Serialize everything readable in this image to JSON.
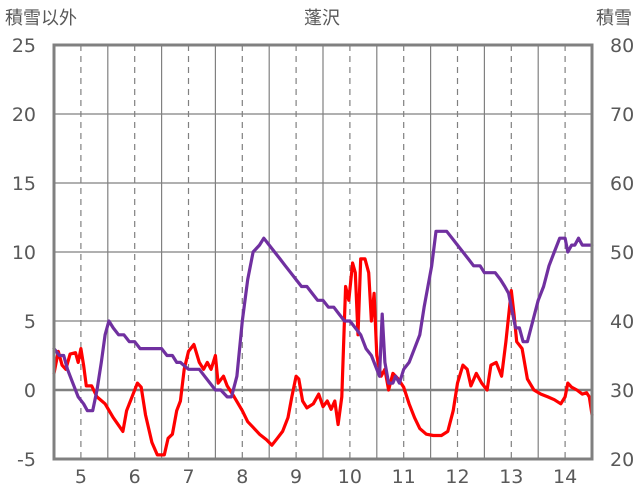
{
  "chart_data": {
    "type": "line",
    "title": "蓬沢",
    "left_axis_label": "積雪以外",
    "right_axis_label": "積雪",
    "x_ticks": [
      "5",
      "6",
      "7",
      "8",
      "9",
      "10",
      "11",
      "12",
      "13",
      "14"
    ],
    "xlim": [
      4.5,
      14.5
    ],
    "ylim_left": [
      -5,
      25
    ],
    "ylim_right": [
      20,
      80
    ],
    "left_ticks": [
      "-5",
      "0",
      "5",
      "10",
      "15",
      "20",
      "25"
    ],
    "right_ticks": [
      "20",
      "30",
      "40",
      "50",
      "60",
      "70",
      "80"
    ],
    "grid": {
      "vertical": "dashed",
      "horizontal": "solid"
    },
    "series": [
      {
        "axis": "left",
        "color": "#ff0000",
        "points": [
          [
            4.5,
            1.2
          ],
          [
            4.58,
            2.8
          ],
          [
            4.65,
            1.8
          ],
          [
            4.72,
            1.5
          ],
          [
            4.8,
            2.6
          ],
          [
            4.9,
            2.7
          ],
          [
            4.95,
            2.0
          ],
          [
            5.0,
            3.0
          ],
          [
            5.05,
            1.8
          ],
          [
            5.1,
            0.3
          ],
          [
            5.2,
            0.3
          ],
          [
            5.3,
            -0.5
          ],
          [
            5.45,
            -1.0
          ],
          [
            5.6,
            -2.0
          ],
          [
            5.78,
            -3.0
          ],
          [
            5.85,
            -1.5
          ],
          [
            5.95,
            -0.5
          ],
          [
            6.05,
            0.5
          ],
          [
            6.12,
            0.2
          ],
          [
            6.2,
            -1.8
          ],
          [
            6.32,
            -3.8
          ],
          [
            6.42,
            -4.7
          ],
          [
            6.55,
            -4.7
          ],
          [
            6.62,
            -3.5
          ],
          [
            6.7,
            -3.2
          ],
          [
            6.78,
            -1.5
          ],
          [
            6.85,
            -0.8
          ],
          [
            6.92,
            1.5
          ],
          [
            7.0,
            2.8
          ],
          [
            7.1,
            3.3
          ],
          [
            7.2,
            2.0
          ],
          [
            7.28,
            1.5
          ],
          [
            7.35,
            2.0
          ],
          [
            7.42,
            1.5
          ],
          [
            7.5,
            2.5
          ],
          [
            7.55,
            0.5
          ],
          [
            7.65,
            1.0
          ],
          [
            7.72,
            0.3
          ],
          [
            7.85,
            -0.5
          ],
          [
            8.0,
            -1.5
          ],
          [
            8.1,
            -2.3
          ],
          [
            8.2,
            -2.7
          ],
          [
            8.32,
            -3.2
          ],
          [
            8.45,
            -3.6
          ],
          [
            8.55,
            -4.0
          ],
          [
            8.65,
            -3.5
          ],
          [
            8.75,
            -3.0
          ],
          [
            8.85,
            -2.0
          ],
          [
            8.92,
            -0.5
          ],
          [
            9.0,
            1.0
          ],
          [
            9.05,
            0.8
          ],
          [
            9.12,
            -0.8
          ],
          [
            9.2,
            -1.3
          ],
          [
            9.32,
            -1.0
          ],
          [
            9.42,
            -0.3
          ],
          [
            9.5,
            -1.2
          ],
          [
            9.58,
            -0.8
          ],
          [
            9.65,
            -1.4
          ],
          [
            9.72,
            -0.8
          ],
          [
            9.78,
            -2.5
          ],
          [
            9.85,
            -0.5
          ],
          [
            9.92,
            7.5
          ],
          [
            9.98,
            6.5
          ],
          [
            10.05,
            9.2
          ],
          [
            10.1,
            8.5
          ],
          [
            10.15,
            4.0
          ],
          [
            10.2,
            9.5
          ],
          [
            10.28,
            9.5
          ],
          [
            10.35,
            8.5
          ],
          [
            10.4,
            5.0
          ],
          [
            10.45,
            7.0
          ],
          [
            10.5,
            2.5
          ],
          [
            10.58,
            1.0
          ],
          [
            10.65,
            1.5
          ],
          [
            10.72,
            0.0
          ],
          [
            10.8,
            1.2
          ],
          [
            10.9,
            0.8
          ],
          [
            11.0,
            0.2
          ],
          [
            11.1,
            -1.0
          ],
          [
            11.2,
            -2.0
          ],
          [
            11.3,
            -2.8
          ],
          [
            11.42,
            -3.2
          ],
          [
            11.55,
            -3.3
          ],
          [
            11.7,
            -3.3
          ],
          [
            11.82,
            -3.0
          ],
          [
            11.92,
            -1.5
          ],
          [
            12.0,
            0.5
          ],
          [
            12.1,
            1.8
          ],
          [
            12.18,
            1.5
          ],
          [
            12.25,
            0.3
          ],
          [
            12.35,
            1.2
          ],
          [
            12.45,
            0.5
          ],
          [
            12.55,
            0.0
          ],
          [
            12.62,
            1.8
          ],
          [
            12.72,
            2.0
          ],
          [
            12.82,
            1.0
          ],
          [
            12.9,
            3.5
          ],
          [
            13.0,
            7.2
          ],
          [
            13.05,
            5.5
          ],
          [
            13.1,
            3.5
          ],
          [
            13.2,
            3.0
          ],
          [
            13.3,
            0.8
          ],
          [
            13.42,
            0.0
          ],
          [
            13.55,
            -0.3
          ],
          [
            13.68,
            -0.5
          ],
          [
            13.8,
            -0.7
          ],
          [
            13.92,
            -1.0
          ],
          [
            14.0,
            -0.5
          ],
          [
            14.05,
            0.5
          ],
          [
            14.12,
            0.2
          ],
          [
            14.22,
            0.0
          ],
          [
            14.32,
            -0.3
          ],
          [
            14.4,
            -0.2
          ],
          [
            14.45,
            -0.5
          ],
          [
            14.5,
            -1.8
          ]
        ]
      },
      {
        "axis": "right",
        "color": "#7030a0",
        "points": [
          [
            4.5,
            36
          ],
          [
            4.6,
            35
          ],
          [
            4.68,
            35
          ],
          [
            4.75,
            33
          ],
          [
            4.85,
            31
          ],
          [
            4.95,
            29
          ],
          [
            5.05,
            28
          ],
          [
            5.12,
            27
          ],
          [
            5.22,
            27
          ],
          [
            5.3,
            30
          ],
          [
            5.38,
            34
          ],
          [
            5.45,
            38
          ],
          [
            5.52,
            40
          ],
          [
            5.6,
            39
          ],
          [
            5.7,
            38
          ],
          [
            5.8,
            38
          ],
          [
            5.9,
            37
          ],
          [
            6.0,
            37
          ],
          [
            6.1,
            36
          ],
          [
            6.3,
            36
          ],
          [
            6.5,
            36
          ],
          [
            6.6,
            35
          ],
          [
            6.7,
            35
          ],
          [
            6.78,
            34
          ],
          [
            6.85,
            34
          ],
          [
            7.0,
            33
          ],
          [
            7.2,
            33
          ],
          [
            7.3,
            32
          ],
          [
            7.4,
            31
          ],
          [
            7.5,
            30
          ],
          [
            7.6,
            30
          ],
          [
            7.72,
            29
          ],
          [
            7.8,
            29
          ],
          [
            7.9,
            32
          ],
          [
            8.0,
            40
          ],
          [
            8.1,
            46
          ],
          [
            8.2,
            50
          ],
          [
            8.32,
            51
          ],
          [
            8.4,
            52
          ],
          [
            8.5,
            51
          ],
          [
            8.6,
            50
          ],
          [
            8.7,
            49
          ],
          [
            8.8,
            48
          ],
          [
            8.9,
            47
          ],
          [
            9.0,
            46
          ],
          [
            9.1,
            45
          ],
          [
            9.2,
            45
          ],
          [
            9.3,
            44
          ],
          [
            9.4,
            43
          ],
          [
            9.5,
            43
          ],
          [
            9.6,
            42
          ],
          [
            9.7,
            42
          ],
          [
            9.8,
            41
          ],
          [
            9.9,
            40
          ],
          [
            10.0,
            40
          ],
          [
            10.1,
            39
          ],
          [
            10.2,
            38
          ],
          [
            10.3,
            36
          ],
          [
            10.4,
            35
          ],
          [
            10.5,
            33
          ],
          [
            10.55,
            32
          ],
          [
            10.6,
            41
          ],
          [
            10.65,
            34
          ],
          [
            10.72,
            31
          ],
          [
            10.8,
            31
          ],
          [
            10.85,
            32
          ],
          [
            10.92,
            31
          ],
          [
            11.0,
            33
          ],
          [
            11.1,
            34
          ],
          [
            11.2,
            36
          ],
          [
            11.3,
            38
          ],
          [
            11.38,
            42
          ],
          [
            11.45,
            45
          ],
          [
            11.52,
            48
          ],
          [
            11.6,
            53
          ],
          [
            11.7,
            53
          ],
          [
            11.8,
            53
          ],
          [
            11.9,
            52
          ],
          [
            12.0,
            51
          ],
          [
            12.1,
            50
          ],
          [
            12.2,
            49
          ],
          [
            12.3,
            48
          ],
          [
            12.42,
            48
          ],
          [
            12.5,
            47
          ],
          [
            12.6,
            47
          ],
          [
            12.7,
            47
          ],
          [
            12.8,
            46
          ],
          [
            12.88,
            45
          ],
          [
            12.95,
            44
          ],
          [
            13.0,
            42
          ],
          [
            13.08,
            39
          ],
          [
            13.15,
            39
          ],
          [
            13.22,
            37
          ],
          [
            13.3,
            37
          ],
          [
            13.4,
            40
          ],
          [
            13.5,
            43
          ],
          [
            13.6,
            45
          ],
          [
            13.7,
            48
          ],
          [
            13.8,
            50
          ],
          [
            13.9,
            52
          ],
          [
            14.0,
            52
          ],
          [
            14.05,
            50
          ],
          [
            14.12,
            51
          ],
          [
            14.18,
            51
          ],
          [
            14.25,
            52
          ],
          [
            14.32,
            51
          ],
          [
            14.4,
            51
          ],
          [
            14.5,
            51
          ]
        ]
      }
    ]
  }
}
